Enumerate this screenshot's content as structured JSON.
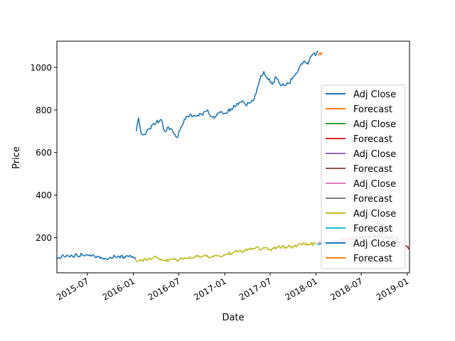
{
  "chart_data": {
    "type": "line",
    "title": "",
    "xlabel": "Date",
    "ylabel": "Price",
    "x_range": [
      "2015-03-01",
      "2019-01-10"
    ],
    "ylim": [
      35,
      1123
    ],
    "grid": false,
    "legend_position": "lower-right",
    "x_ticks": [
      {
        "date": "2015-07-01",
        "label": "2015-07"
      },
      {
        "date": "2016-01-01",
        "label": "2016-01"
      },
      {
        "date": "2016-07-01",
        "label": "2016-07"
      },
      {
        "date": "2017-01-01",
        "label": "2017-01"
      },
      {
        "date": "2017-07-01",
        "label": "2017-07"
      },
      {
        "date": "2018-01-01",
        "label": "2018-01"
      },
      {
        "date": "2018-07-01",
        "label": "2018-07"
      },
      {
        "date": "2019-01-01",
        "label": "2019-01"
      }
    ],
    "y_ticks": [
      200,
      400,
      600,
      800,
      1000
    ],
    "series": [
      {
        "name": "Adj Close",
        "color": "#1f77b4",
        "points": [
          [
            "2016-01-13",
            700
          ],
          [
            "2016-01-22",
            762
          ],
          [
            "2016-02-01",
            690
          ],
          [
            "2016-02-15",
            685
          ],
          [
            "2016-03-01",
            710
          ],
          [
            "2016-04-01",
            740
          ],
          [
            "2016-04-22",
            755
          ],
          [
            "2016-05-05",
            700
          ],
          [
            "2016-05-20",
            720
          ],
          [
            "2016-06-08",
            695
          ],
          [
            "2016-06-24",
            670
          ],
          [
            "2016-07-10",
            720
          ],
          [
            "2016-08-01",
            770
          ],
          [
            "2016-09-01",
            775
          ],
          [
            "2016-10-01",
            780
          ],
          [
            "2016-10-25",
            800
          ],
          [
            "2016-11-05",
            770
          ],
          [
            "2016-11-20",
            760
          ],
          [
            "2016-12-10",
            790
          ],
          [
            "2017-01-01",
            785
          ],
          [
            "2017-01-25",
            805
          ],
          [
            "2017-02-15",
            820
          ],
          [
            "2017-03-10",
            840
          ],
          [
            "2017-03-25",
            825
          ],
          [
            "2017-04-15",
            835
          ],
          [
            "2017-04-28",
            850
          ],
          [
            "2017-05-10",
            900
          ],
          [
            "2017-05-25",
            960
          ],
          [
            "2017-06-06",
            980
          ],
          [
            "2017-06-20",
            950
          ],
          [
            "2017-07-10",
            920
          ],
          [
            "2017-07-25",
            955
          ],
          [
            "2017-08-10",
            920
          ],
          [
            "2017-08-25",
            915
          ],
          [
            "2017-09-15",
            925
          ],
          [
            "2017-10-01",
            955
          ],
          [
            "2017-10-20",
            980
          ],
          [
            "2017-10-30",
            1010
          ],
          [
            "2017-11-15",
            1030
          ],
          [
            "2017-11-30",
            1015
          ],
          [
            "2017-12-10",
            1050
          ],
          [
            "2017-12-22",
            1065
          ],
          [
            "2018-01-02",
            1060
          ],
          [
            "2018-01-10",
            1075
          ]
        ]
      },
      {
        "name": "Forecast",
        "color": "#ff7f0e",
        "points": [
          [
            "2018-01-10",
            1058
          ],
          [
            "2018-01-14",
            1068
          ],
          [
            "2018-01-19",
            1062
          ],
          [
            "2018-01-24",
            1072
          ]
        ]
      },
      {
        "name": "Adj Close",
        "color": "#2ca02c",
        "points": []
      },
      {
        "name": "Forecast",
        "color": "#d62728",
        "points": [
          [
            "2019-01-01",
            152
          ],
          [
            "2019-01-04",
            158
          ],
          [
            "2019-01-08",
            150
          ]
        ]
      },
      {
        "name": "Adj Close",
        "color": "#9467bd",
        "points": [
          [
            "2018-04-01",
            175
          ],
          [
            "2018-07-01",
            200
          ],
          [
            "2018-10-01",
            215
          ],
          [
            "2018-12-01",
            190
          ]
        ]
      },
      {
        "name": "Forecast",
        "color": "#8c564b",
        "points": [
          [
            "2018-12-25",
            160
          ],
          [
            "2019-01-01",
            156
          ],
          [
            "2019-01-06",
            150
          ]
        ]
      },
      {
        "name": "Adj Close",
        "color": "#e377c2",
        "points": [
          [
            "2018-01-10",
            170
          ],
          [
            "2018-03-01",
            180
          ],
          [
            "2018-06-01",
            195
          ]
        ]
      },
      {
        "name": "Forecast",
        "color": "#7f7f7f",
        "points": [
          [
            "2018-08-01",
            205
          ],
          [
            "2018-11-01",
            195
          ],
          [
            "2018-12-20",
            168
          ]
        ]
      },
      {
        "name": "Adj Close",
        "color": "#bcbd22",
        "points": [
          [
            "2016-01-10",
            95
          ],
          [
            "2016-02-01",
            92
          ],
          [
            "2016-03-01",
            100
          ],
          [
            "2016-04-01",
            108
          ],
          [
            "2016-05-01",
            93
          ],
          [
            "2016-06-01",
            98
          ],
          [
            "2016-07-01",
            96
          ],
          [
            "2016-08-01",
            105
          ],
          [
            "2016-09-01",
            110
          ],
          [
            "2016-10-01",
            112
          ],
          [
            "2016-11-01",
            108
          ],
          [
            "2016-12-01",
            114
          ],
          [
            "2017-01-01",
            118
          ],
          [
            "2017-02-01",
            128
          ],
          [
            "2017-03-01",
            138
          ],
          [
            "2017-04-01",
            140
          ],
          [
            "2017-05-01",
            150
          ],
          [
            "2017-06-01",
            148
          ],
          [
            "2017-07-01",
            145
          ],
          [
            "2017-08-01",
            155
          ],
          [
            "2017-09-01",
            156
          ],
          [
            "2017-10-01",
            158
          ],
          [
            "2017-11-01",
            170
          ],
          [
            "2017-12-01",
            168
          ],
          [
            "2018-01-01",
            172
          ]
        ]
      },
      {
        "name": "Forecast",
        "color": "#17becf",
        "points": [
          [
            "2018-01-05",
            170
          ],
          [
            "2018-02-01",
            175
          ],
          [
            "2018-04-01",
            182
          ]
        ]
      },
      {
        "name": "Adj Close",
        "color": "#1f77b4",
        "points": [
          [
            "2015-03-01",
            100
          ],
          [
            "2015-03-20",
            112
          ],
          [
            "2015-04-10",
            118
          ],
          [
            "2015-05-01",
            116
          ],
          [
            "2015-05-20",
            118
          ],
          [
            "2015-06-10",
            120
          ],
          [
            "2015-07-01",
            120
          ],
          [
            "2015-07-20",
            118
          ],
          [
            "2015-08-10",
            113
          ],
          [
            "2015-08-25",
            108
          ],
          [
            "2015-09-10",
            103
          ],
          [
            "2015-10-01",
            108
          ],
          [
            "2015-10-20",
            111
          ],
          [
            "2015-11-05",
            112
          ],
          [
            "2015-11-25",
            110
          ],
          [
            "2015-12-10",
            113
          ],
          [
            "2015-12-25",
            107
          ],
          [
            "2016-01-10",
            98
          ]
        ]
      },
      {
        "name": "Forecast",
        "color": "#ff7f0e",
        "points": []
      }
    ]
  }
}
